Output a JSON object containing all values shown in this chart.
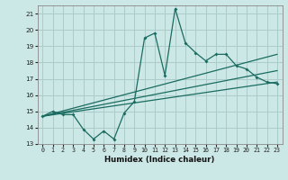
{
  "title": "",
  "xlabel": "Humidex (Indice chaleur)",
  "bg_color": "#cce8e6",
  "grid_color": "#aaccca",
  "line_color": "#1a6b60",
  "xlim": [
    -0.5,
    23.5
  ],
  "ylim": [
    13,
    21.5
  ],
  "yticks": [
    13,
    14,
    15,
    16,
    17,
    18,
    19,
    20,
    21
  ],
  "xticks": [
    0,
    1,
    2,
    3,
    4,
    5,
    6,
    7,
    8,
    9,
    10,
    11,
    12,
    13,
    14,
    15,
    16,
    17,
    18,
    19,
    20,
    21,
    22,
    23
  ],
  "main_x": [
    0,
    1,
    2,
    3,
    4,
    5,
    6,
    7,
    8,
    9,
    10,
    11,
    12,
    13,
    14,
    15,
    16,
    17,
    18,
    19,
    20,
    21,
    22,
    23
  ],
  "main_y": [
    14.7,
    15.0,
    14.8,
    14.8,
    13.9,
    13.3,
    13.8,
    13.3,
    14.9,
    15.6,
    19.5,
    19.8,
    17.2,
    21.3,
    19.2,
    18.6,
    18.1,
    18.5,
    18.5,
    17.8,
    17.6,
    17.1,
    16.8,
    16.7
  ],
  "line1_x": [
    0,
    23
  ],
  "line1_y": [
    14.7,
    18.5
  ],
  "line2_x": [
    0,
    23
  ],
  "line2_y": [
    14.7,
    16.8
  ],
  "line3_x": [
    0,
    23
  ],
  "line3_y": [
    14.7,
    17.5
  ]
}
